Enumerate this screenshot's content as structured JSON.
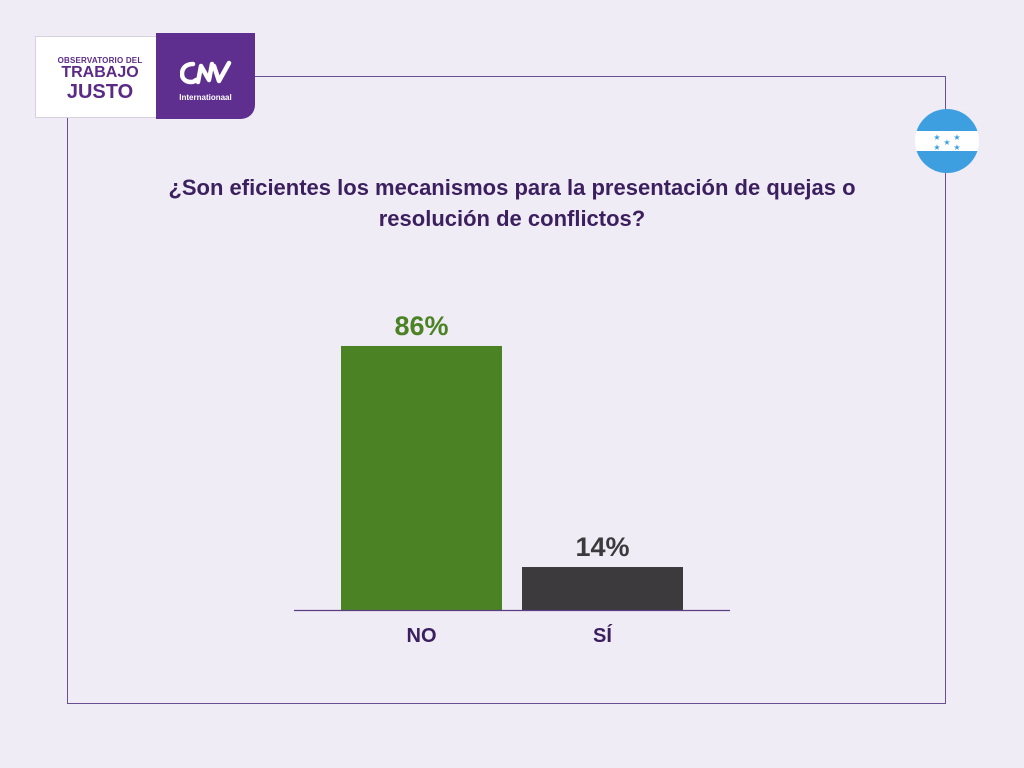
{
  "logo": {
    "observatorio": "OBSERVATORIO DEL",
    "trabajo": "TRABAJO",
    "justo": "JUSTO",
    "brand_sub": "Internationaal",
    "colors": {
      "purple": "#5e2f8f",
      "text_purple": "#5b2a86"
    }
  },
  "flag": {
    "country": "Honduras",
    "icon": "honduras-flag-icon",
    "colors": {
      "blue": "#3d9fe0",
      "white": "#ffffff"
    }
  },
  "chart_data": {
    "type": "bar",
    "title": "¿Son eficientes los mecanismos para la presentación de quejas o resolución de conflictos?",
    "categories": [
      "NO",
      "SÍ"
    ],
    "values": [
      86,
      14
    ],
    "value_labels": [
      "86%",
      "14%"
    ],
    "colors": [
      "#4a8224",
      "#3d3a3d"
    ],
    "label_colors": [
      "#4a8224",
      "#3d3a3d"
    ],
    "category_label_color": "#3b1f5e",
    "ylim": [
      0,
      100
    ],
    "grid": false,
    "legend": "none"
  }
}
